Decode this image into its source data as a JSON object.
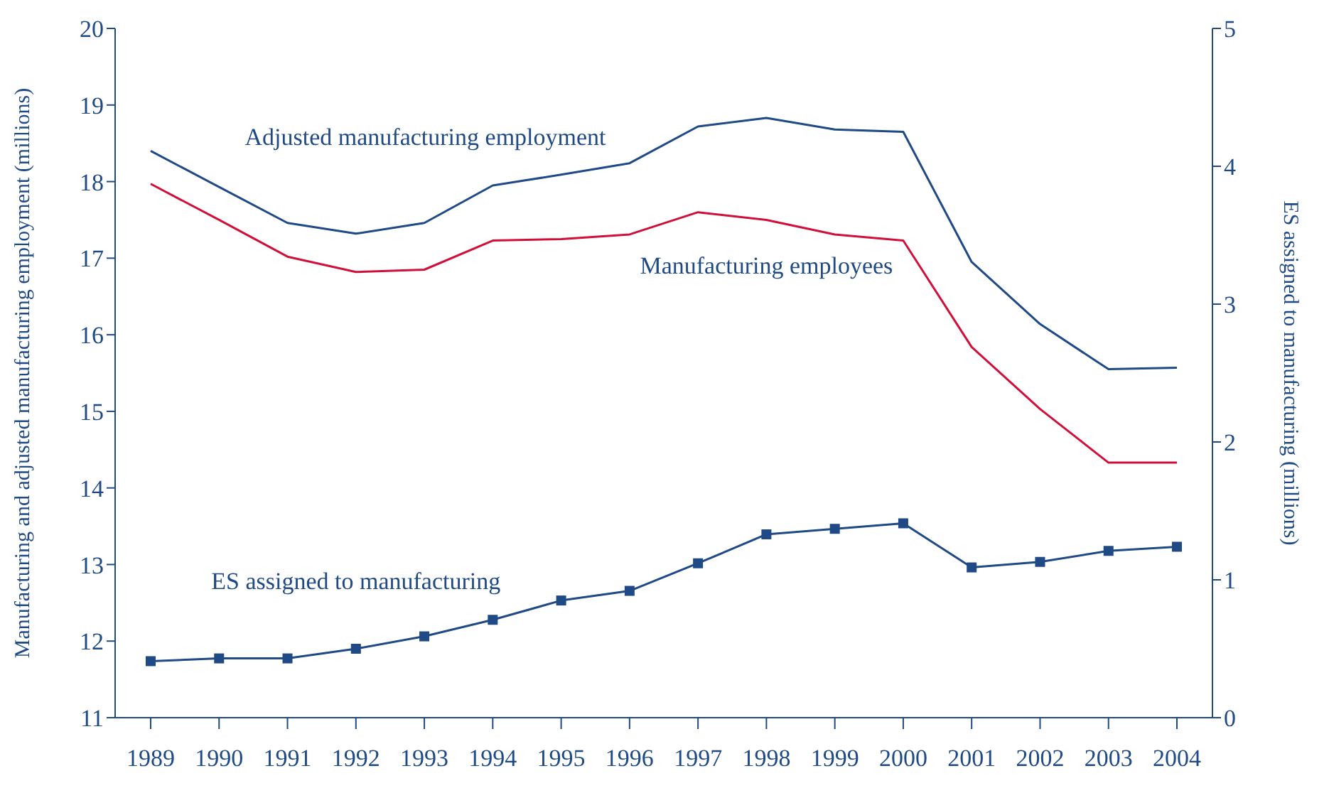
{
  "chart_data": {
    "type": "line",
    "ylabel": "Manufacturing and adjusted manufacturing employment (millions)",
    "y2label": "ES assigned to manufacturing (millions)",
    "categories": [
      "1989",
      "1990",
      "1991",
      "1992",
      "1993",
      "1994",
      "1995",
      "1996",
      "1997",
      "1998",
      "1999",
      "2000",
      "2001",
      "2002",
      "2003",
      "2004"
    ],
    "series": [
      {
        "name": "Adjusted manufacturing employment",
        "color": "#1f4a86",
        "marker": "none",
        "values": [
          18.4,
          17.93,
          17.46,
          17.32,
          17.46,
          17.95,
          18.09,
          18.24,
          18.72,
          18.83,
          18.68,
          18.65,
          16.95,
          16.14,
          15.55,
          15.57
        ]
      },
      {
        "name": "Manufacturing employees",
        "color": "#d0103a",
        "marker": "none",
        "values": [
          17.97,
          17.5,
          17.02,
          16.82,
          16.85,
          17.23,
          17.25,
          17.31,
          17.6,
          17.5,
          17.31,
          17.23,
          15.84,
          15.03,
          14.33,
          14.33
        ]
      },
      {
        "name": "ES assigned to manufacturing",
        "color": "#1f4a86",
        "marker": "square",
        "axis": "y2",
        "values": [
          0.41,
          0.43,
          0.43,
          0.5,
          0.59,
          0.71,
          0.85,
          0.92,
          1.12,
          1.33,
          1.37,
          1.41,
          1.09,
          1.13,
          1.21,
          1.24
        ]
      }
    ],
    "ylim": [
      11,
      20
    ],
    "yticks": [
      11,
      12,
      13,
      14,
      15,
      16,
      17,
      18,
      19,
      20
    ],
    "y2lim": [
      0,
      5
    ],
    "y2ticks": [
      0,
      1,
      2,
      3,
      4,
      5
    ],
    "grid": false,
    "legend": false
  }
}
